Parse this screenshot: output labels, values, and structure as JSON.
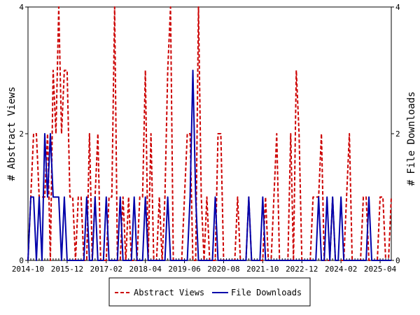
{
  "chart_data": {
    "type": "line",
    "ylabel": "# Abstract Views",
    "y2label": "# File Downloads",
    "xlabel": "",
    "x_tick_labels": [
      "2014-10",
      "2015-12",
      "2017-02",
      "2018-04",
      "2019-06",
      "2020-08",
      "2021-10",
      "2022-12",
      "2024-02",
      "2025-04"
    ],
    "x_range": [
      "2014-10",
      "2025-08"
    ],
    "ylim": [
      0,
      4
    ],
    "y2lim": [
      0,
      4
    ],
    "y_ticks": [
      "0",
      "2",
      "4"
    ],
    "y2_ticks": [
      "0",
      "2",
      "4"
    ],
    "grid": false,
    "legend_position": "bottom",
    "series": [
      {
        "name": "Abstract Views",
        "color": "#cc0000",
        "style": "dashed",
        "axis": "left",
        "points": [
          [
            "2014-10",
            0
          ],
          [
            "2014-11",
            1
          ],
          [
            "2014-12",
            2
          ],
          [
            "2015-01",
            2
          ],
          [
            "2015-02",
            1
          ],
          [
            "2015-03",
            1
          ],
          [
            "2015-04",
            1
          ],
          [
            "2015-05",
            2
          ],
          [
            "2015-06",
            0
          ],
          [
            "2015-07",
            3
          ],
          [
            "2015-08",
            2
          ],
          [
            "2015-09",
            4
          ],
          [
            "2015-10",
            2
          ],
          [
            "2015-11",
            3
          ],
          [
            "2015-12",
            3
          ],
          [
            "2016-01",
            1
          ],
          [
            "2016-02",
            1
          ],
          [
            "2016-03",
            0
          ],
          [
            "2016-04",
            1
          ],
          [
            "2016-05",
            1
          ],
          [
            "2016-06",
            0
          ],
          [
            "2016-07",
            0
          ],
          [
            "2016-08",
            2
          ],
          [
            "2016-09",
            0
          ],
          [
            "2016-10",
            1
          ],
          [
            "2016-11",
            2
          ],
          [
            "2016-12",
            0
          ],
          [
            "2017-01",
            0
          ],
          [
            "2017-02",
            0
          ],
          [
            "2017-03",
            1
          ],
          [
            "2017-04",
            1
          ],
          [
            "2017-05",
            4
          ],
          [
            "2017-06",
            0
          ],
          [
            "2017-07",
            0
          ],
          [
            "2017-08",
            1
          ],
          [
            "2017-09",
            0
          ],
          [
            "2017-10",
            1
          ],
          [
            "2017-11",
            0
          ],
          [
            "2017-12",
            0
          ],
          [
            "2018-01",
            0
          ],
          [
            "2018-02",
            1
          ],
          [
            "2018-03",
            1
          ],
          [
            "2018-04",
            3
          ],
          [
            "2018-05",
            0
          ],
          [
            "2018-06",
            2
          ],
          [
            "2018-07",
            0
          ],
          [
            "2018-08",
            0
          ],
          [
            "2018-09",
            1
          ],
          [
            "2018-10",
            0
          ],
          [
            "2018-11",
            1
          ],
          [
            "2018-12",
            3
          ],
          [
            "2019-01",
            4
          ],
          [
            "2019-02",
            0
          ],
          [
            "2019-03",
            0
          ],
          [
            "2019-04",
            0
          ],
          [
            "2019-05",
            0
          ],
          [
            "2019-06",
            1
          ],
          [
            "2019-07",
            2
          ],
          [
            "2019-08",
            2
          ],
          [
            "2019-09",
            0
          ],
          [
            "2019-10",
            0
          ],
          [
            "2019-11",
            4
          ],
          [
            "2019-12",
            1
          ],
          [
            "2020-01",
            0
          ],
          [
            "2020-02",
            1
          ],
          [
            "2020-03",
            0
          ],
          [
            "2020-04",
            0
          ],
          [
            "2020-05",
            0
          ],
          [
            "2020-06",
            2
          ],
          [
            "2020-07",
            2
          ],
          [
            "2020-08",
            0
          ],
          [
            "2020-09",
            0
          ],
          [
            "2020-10",
            0
          ],
          [
            "2020-11",
            0
          ],
          [
            "2020-12",
            0
          ],
          [
            "2021-01",
            1
          ],
          [
            "2021-02",
            0
          ],
          [
            "2021-03",
            0
          ],
          [
            "2021-04",
            0
          ],
          [
            "2021-05",
            1
          ],
          [
            "2021-06",
            0
          ],
          [
            "2021-07",
            0
          ],
          [
            "2021-08",
            0
          ],
          [
            "2021-09",
            0
          ],
          [
            "2021-10",
            0
          ],
          [
            "2021-11",
            1
          ],
          [
            "2021-12",
            0
          ],
          [
            "2022-01",
            0
          ],
          [
            "2022-02",
            1
          ],
          [
            "2022-03",
            2
          ],
          [
            "2022-04",
            0
          ],
          [
            "2022-05",
            0
          ],
          [
            "2022-06",
            0
          ],
          [
            "2022-07",
            0
          ],
          [
            "2022-08",
            2
          ],
          [
            "2022-09",
            0
          ],
          [
            "2022-10",
            3
          ],
          [
            "2022-11",
            2
          ],
          [
            "2022-12",
            0
          ],
          [
            "2023-01",
            0
          ],
          [
            "2023-02",
            0
          ],
          [
            "2023-03",
            0
          ],
          [
            "2023-04",
            1
          ],
          [
            "2023-05",
            1
          ],
          [
            "2023-06",
            1
          ],
          [
            "2023-07",
            2
          ],
          [
            "2023-08",
            0
          ],
          [
            "2023-09",
            0
          ],
          [
            "2023-10",
            0
          ],
          [
            "2023-11",
            1
          ],
          [
            "2023-12",
            0
          ],
          [
            "2024-01",
            0
          ],
          [
            "2024-02",
            0
          ],
          [
            "2024-03",
            0
          ],
          [
            "2024-04",
            1
          ],
          [
            "2024-05",
            2
          ],
          [
            "2024-06",
            0
          ],
          [
            "2024-07",
            0
          ],
          [
            "2024-08",
            0
          ],
          [
            "2024-09",
            0
          ],
          [
            "2024-10",
            1
          ],
          [
            "2024-11",
            1
          ],
          [
            "2024-12",
            0
          ],
          [
            "2025-01",
            0
          ],
          [
            "2025-02",
            0
          ],
          [
            "2025-03",
            0
          ],
          [
            "2025-04",
            1
          ],
          [
            "2025-05",
            1
          ],
          [
            "2025-06",
            0
          ],
          [
            "2025-07",
            0
          ],
          [
            "2025-08",
            1
          ]
        ]
      },
      {
        "name": "File Downloads",
        "color": "#0000aa",
        "style": "solid",
        "axis": "right",
        "points": [
          [
            "2014-10",
            0
          ],
          [
            "2014-11",
            1
          ],
          [
            "2014-12",
            1
          ],
          [
            "2015-01",
            0
          ],
          [
            "2015-02",
            1
          ],
          [
            "2015-03",
            0
          ],
          [
            "2015-04",
            2
          ],
          [
            "2015-05",
            1
          ],
          [
            "2015-06",
            2
          ],
          [
            "2015-07",
            1
          ],
          [
            "2015-08",
            1
          ],
          [
            "2015-09",
            1
          ],
          [
            "2015-10",
            0
          ],
          [
            "2015-11",
            1
          ],
          [
            "2015-12",
            0
          ],
          [
            "2016-01",
            0
          ],
          [
            "2016-02",
            0
          ],
          [
            "2016-03",
            0
          ],
          [
            "2016-04",
            0
          ],
          [
            "2016-05",
            0
          ],
          [
            "2016-06",
            0
          ],
          [
            "2016-07",
            1
          ],
          [
            "2016-08",
            0
          ],
          [
            "2016-09",
            0
          ],
          [
            "2016-10",
            1
          ],
          [
            "2016-11",
            0
          ],
          [
            "2016-12",
            0
          ],
          [
            "2017-01",
            0
          ],
          [
            "2017-02",
            1
          ],
          [
            "2017-03",
            0
          ],
          [
            "2017-04",
            0
          ],
          [
            "2017-05",
            0
          ],
          [
            "2017-06",
            0
          ],
          [
            "2017-07",
            1
          ],
          [
            "2017-08",
            0
          ],
          [
            "2017-09",
            0
          ],
          [
            "2017-10",
            0
          ],
          [
            "2017-11",
            0
          ],
          [
            "2017-12",
            1
          ],
          [
            "2018-01",
            0
          ],
          [
            "2018-02",
            0
          ],
          [
            "2018-03",
            0
          ],
          [
            "2018-04",
            1
          ],
          [
            "2018-05",
            0
          ],
          [
            "2018-06",
            0
          ],
          [
            "2018-07",
            0
          ],
          [
            "2018-08",
            0
          ],
          [
            "2018-09",
            0
          ],
          [
            "2018-10",
            0
          ],
          [
            "2018-11",
            0
          ],
          [
            "2018-12",
            1
          ],
          [
            "2019-01",
            0
          ],
          [
            "2019-02",
            0
          ],
          [
            "2019-03",
            0
          ],
          [
            "2019-04",
            0
          ],
          [
            "2019-05",
            0
          ],
          [
            "2019-06",
            0
          ],
          [
            "2019-07",
            0
          ],
          [
            "2019-08",
            1
          ],
          [
            "2019-09",
            3
          ],
          [
            "2019-10",
            1
          ],
          [
            "2019-11",
            0
          ],
          [
            "2019-12",
            0
          ],
          [
            "2020-01",
            0
          ],
          [
            "2020-02",
            0
          ],
          [
            "2020-03",
            0
          ],
          [
            "2020-04",
            0
          ],
          [
            "2020-05",
            1
          ],
          [
            "2020-06",
            0
          ],
          [
            "2020-07",
            0
          ],
          [
            "2020-08",
            0
          ],
          [
            "2020-09",
            0
          ],
          [
            "2020-10",
            0
          ],
          [
            "2020-11",
            0
          ],
          [
            "2020-12",
            0
          ],
          [
            "2021-01",
            0
          ],
          [
            "2021-02",
            0
          ],
          [
            "2021-03",
            0
          ],
          [
            "2021-04",
            0
          ],
          [
            "2021-05",
            1
          ],
          [
            "2021-06",
            0
          ],
          [
            "2021-07",
            0
          ],
          [
            "2021-08",
            0
          ],
          [
            "2021-09",
            0
          ],
          [
            "2021-10",
            1
          ],
          [
            "2021-11",
            0
          ],
          [
            "2021-12",
            0
          ],
          [
            "2022-01",
            0
          ],
          [
            "2022-02",
            0
          ],
          [
            "2022-03",
            0
          ],
          [
            "2022-04",
            0
          ],
          [
            "2022-05",
            0
          ],
          [
            "2022-06",
            0
          ],
          [
            "2022-07",
            0
          ],
          [
            "2022-08",
            0
          ],
          [
            "2022-09",
            0
          ],
          [
            "2022-10",
            0
          ],
          [
            "2022-11",
            0
          ],
          [
            "2022-12",
            0
          ],
          [
            "2023-01",
            0
          ],
          [
            "2023-02",
            0
          ],
          [
            "2023-03",
            0
          ],
          [
            "2023-04",
            0
          ],
          [
            "2023-05",
            0
          ],
          [
            "2023-06",
            1
          ],
          [
            "2023-07",
            0
          ],
          [
            "2023-08",
            0
          ],
          [
            "2023-09",
            1
          ],
          [
            "2023-10",
            0
          ],
          [
            "2023-11",
            1
          ],
          [
            "2023-12",
            0
          ],
          [
            "2024-01",
            0
          ],
          [
            "2024-02",
            1
          ],
          [
            "2024-03",
            0
          ],
          [
            "2024-04",
            0
          ],
          [
            "2024-05",
            0
          ],
          [
            "2024-06",
            0
          ],
          [
            "2024-07",
            0
          ],
          [
            "2024-08",
            0
          ],
          [
            "2024-09",
            0
          ],
          [
            "2024-10",
            0
          ],
          [
            "2024-11",
            0
          ],
          [
            "2024-12",
            1
          ],
          [
            "2025-01",
            0
          ],
          [
            "2025-02",
            0
          ],
          [
            "2025-03",
            0
          ],
          [
            "2025-04",
            0
          ],
          [
            "2025-05",
            0
          ],
          [
            "2025-06",
            0
          ],
          [
            "2025-07",
            0
          ],
          [
            "2025-08",
            0
          ]
        ]
      }
    ]
  }
}
